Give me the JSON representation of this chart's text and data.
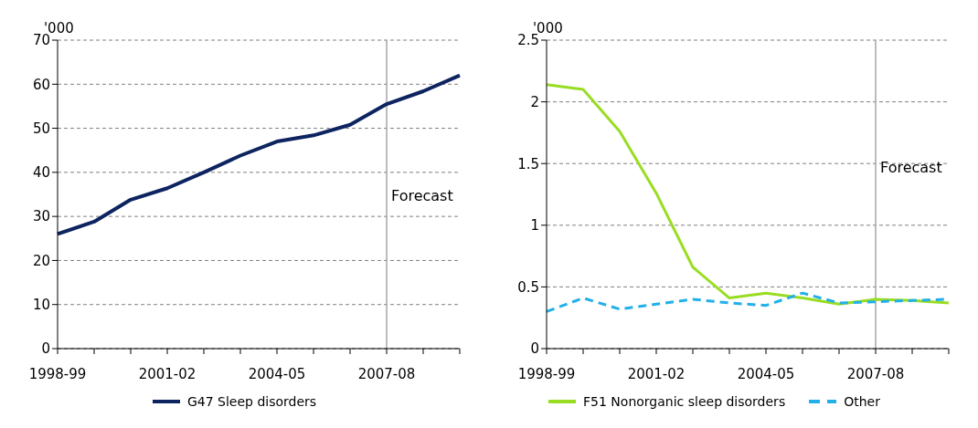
{
  "chart_data": [
    {
      "type": "line",
      "ylabel": "'000",
      "categories": [
        "1998-99",
        null,
        null,
        "2001-02",
        null,
        null,
        "2004-05",
        null,
        null,
        "2007-08",
        null,
        null
      ],
      "series": [
        {
          "name": "G47 Sleep disorders",
          "color": "#0d2460",
          "values": [
            26.0,
            28.8,
            33.8,
            36.4,
            40.0,
            43.8,
            47.0,
            48.4,
            50.8,
            55.5,
            58.4,
            62.0
          ]
        }
      ],
      "ylim": [
        0,
        70
      ],
      "yticks": [
        0,
        10,
        20,
        30,
        40,
        50,
        60,
        70
      ],
      "grid": "y",
      "legend": "bottom",
      "marker": "none",
      "line_style": "solid",
      "ref_lines": [
        {
          "axis": "x",
          "value": "2007-08",
          "label": "Forecast",
          "color": "#a6a6a6"
        }
      ]
    },
    {
      "type": "line",
      "ylabel": "'000",
      "categories": [
        "1998-99",
        null,
        null,
        "2001-02",
        null,
        null,
        "2004-05",
        null,
        null,
        "2007-08",
        null,
        null
      ],
      "series": [
        {
          "name": "F51 Nonorganic sleep disorders",
          "color": "#99dd22",
          "line_style": "solid",
          "values": [
            2.14,
            2.1,
            1.76,
            1.26,
            0.66,
            0.41,
            0.45,
            0.41,
            0.36,
            0.4,
            0.39,
            0.37
          ]
        },
        {
          "name": "Other",
          "color": "#22b0e8",
          "line_style": "dashed",
          "values": [
            0.3,
            0.41,
            0.32,
            0.36,
            0.4,
            0.37,
            0.35,
            0.45,
            0.37,
            0.38,
            0.39,
            0.4
          ]
        }
      ],
      "ylim": [
        0,
        2.5
      ],
      "yticks": [
        0,
        0.5,
        1,
        1.5,
        2,
        2.5
      ],
      "grid": "y",
      "legend": "bottom",
      "marker": "none",
      "ref_lines": [
        {
          "axis": "x",
          "value": "2007-08",
          "label": "Forecast",
          "color": "#a6a6a6"
        }
      ]
    }
  ]
}
